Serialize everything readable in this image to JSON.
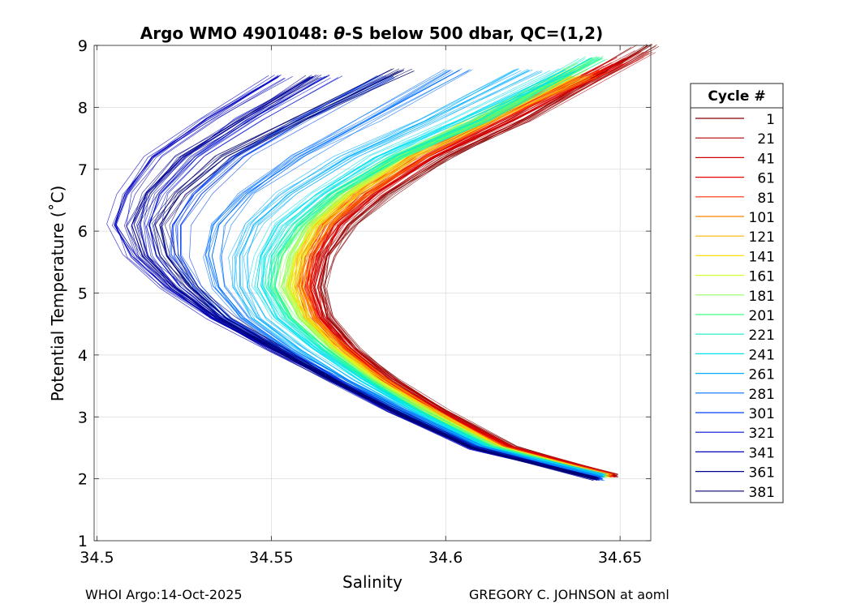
{
  "chart_data": {
    "type": "line",
    "title_prefix": "Argo WMO 4901048: ",
    "title_theta": "θ",
    "title_suffix": "-S below 500 dbar,  QC=(1,2)",
    "xlabel": "Salinity",
    "ylabel": "Potential Temperature (˚C)",
    "xlim": [
      34.4992,
      34.6588
    ],
    "ylim": [
      1,
      9
    ],
    "xticks": [
      34.5,
      34.55,
      34.6,
      34.65
    ],
    "xtick_labels": [
      "34.5",
      "34.55",
      "34.6",
      "34.65"
    ],
    "yticks": [
      1,
      2,
      3,
      4,
      5,
      6,
      7,
      8,
      9
    ],
    "ytick_labels": [
      "1",
      "2",
      "3",
      "4",
      "5",
      "6",
      "7",
      "8",
      "9"
    ],
    "grid": true,
    "legend_title": "Cycle #",
    "legend_placement": "outside-right",
    "series": [
      {
        "name": "1",
        "color": "#800000",
        "salinity": [
          34.649,
          34.62,
          34.6,
          34.585,
          34.574,
          34.566,
          34.564,
          34.566,
          34.572,
          34.583,
          34.6,
          34.622,
          34.658
        ],
        "theta": [
          2.05,
          2.5,
          3.1,
          3.6,
          4.1,
          4.6,
          5.1,
          5.6,
          6.1,
          6.6,
          7.2,
          7.8,
          9.0
        ]
      },
      {
        "name": "21",
        "color": "#b40000",
        "salinity": [
          34.648,
          34.619,
          34.599,
          34.584,
          34.573,
          34.565,
          34.562,
          34.564,
          34.57,
          34.58,
          34.597,
          34.62,
          34.656
        ],
        "theta": [
          2.05,
          2.5,
          3.1,
          3.6,
          4.1,
          4.6,
          5.1,
          5.6,
          6.1,
          6.6,
          7.2,
          7.8,
          8.9
        ]
      },
      {
        "name": "41",
        "color": "#d00000",
        "salinity": [
          34.648,
          34.618,
          34.598,
          34.583,
          34.572,
          34.564,
          34.561,
          34.563,
          34.568,
          34.578,
          34.595,
          34.617,
          34.652
        ],
        "theta": [
          2.05,
          2.5,
          3.1,
          3.6,
          4.1,
          4.6,
          5.1,
          5.6,
          6.1,
          6.6,
          7.2,
          7.8,
          8.8
        ]
      },
      {
        "name": "61",
        "color": "#e80000",
        "salinity": [
          34.648,
          34.618,
          34.597,
          34.582,
          34.571,
          34.563,
          34.56,
          34.562,
          34.567,
          34.577,
          34.594,
          34.616,
          34.648
        ],
        "theta": [
          2.05,
          2.5,
          3.1,
          3.6,
          4.1,
          4.6,
          5.1,
          5.6,
          6.1,
          6.6,
          7.2,
          7.8,
          8.7
        ]
      },
      {
        "name": "81",
        "color": "#ff3000",
        "salinity": [
          34.647,
          34.617,
          34.597,
          34.582,
          34.57,
          34.562,
          34.559,
          34.561,
          34.566,
          34.576,
          34.592,
          34.613,
          34.644
        ],
        "theta": [
          2.05,
          2.5,
          3.1,
          3.6,
          4.1,
          4.6,
          5.1,
          5.6,
          6.1,
          6.6,
          7.2,
          7.8,
          8.6
        ]
      },
      {
        "name": "101",
        "color": "#ff8000",
        "salinity": [
          34.647,
          34.617,
          34.596,
          34.581,
          34.57,
          34.561,
          34.558,
          34.56,
          34.565,
          34.575,
          34.591,
          34.612,
          34.64
        ],
        "theta": [
          2.05,
          2.5,
          3.1,
          3.6,
          4.1,
          4.6,
          5.1,
          5.6,
          6.1,
          6.6,
          7.2,
          7.8,
          8.5
        ]
      },
      {
        "name": "121",
        "color": "#ffb000",
        "salinity": [
          34.647,
          34.616,
          34.596,
          34.581,
          34.569,
          34.561,
          34.557,
          34.559,
          34.564,
          34.574,
          34.59,
          34.611,
          34.638
        ],
        "theta": [
          2.05,
          2.5,
          3.1,
          3.6,
          4.1,
          4.6,
          5.1,
          5.6,
          6.1,
          6.6,
          7.2,
          7.8,
          8.5
        ]
      },
      {
        "name": "141",
        "color": "#ffe000",
        "salinity": [
          34.646,
          34.616,
          34.595,
          34.58,
          34.569,
          34.56,
          34.556,
          34.558,
          34.563,
          34.573,
          34.589,
          34.61,
          34.636
        ],
        "theta": [
          2.05,
          2.5,
          3.1,
          3.6,
          4.1,
          4.6,
          5.1,
          5.6,
          6.1,
          6.6,
          7.2,
          7.8,
          8.5
        ]
      },
      {
        "name": "161",
        "color": "#d0ff30",
        "salinity": [
          34.646,
          34.615,
          34.595,
          34.58,
          34.568,
          34.559,
          34.555,
          34.557,
          34.562,
          34.572,
          34.588,
          34.61,
          34.637
        ],
        "theta": [
          2.05,
          2.5,
          3.1,
          3.6,
          4.1,
          4.6,
          5.1,
          5.6,
          6.1,
          6.6,
          7.2,
          7.8,
          8.6
        ]
      },
      {
        "name": "181",
        "color": "#90ff60",
        "salinity": [
          34.646,
          34.615,
          34.594,
          34.579,
          34.567,
          34.558,
          34.553,
          34.555,
          34.56,
          34.57,
          34.587,
          34.61,
          34.64
        ],
        "theta": [
          2.05,
          2.5,
          3.1,
          3.6,
          4.1,
          4.6,
          5.1,
          5.6,
          6.1,
          6.6,
          7.2,
          7.8,
          8.7
        ]
      },
      {
        "name": "201",
        "color": "#40ff80",
        "salinity": [
          34.645,
          34.614,
          34.593,
          34.578,
          34.566,
          34.556,
          34.551,
          34.553,
          34.559,
          34.569,
          34.587,
          34.612,
          34.645
        ],
        "theta": [
          2.05,
          2.5,
          3.1,
          3.6,
          4.1,
          4.6,
          5.1,
          5.6,
          6.1,
          6.6,
          7.2,
          7.8,
          8.8
        ]
      },
      {
        "name": "221",
        "color": "#10f0c0",
        "salinity": [
          34.645,
          34.613,
          34.592,
          34.577,
          34.564,
          34.554,
          34.549,
          34.55,
          34.556,
          34.567,
          34.585,
          34.61,
          34.642
        ],
        "theta": [
          2.05,
          2.5,
          3.1,
          3.6,
          4.1,
          4.6,
          5.1,
          5.6,
          6.1,
          6.6,
          7.2,
          7.8,
          8.8
        ]
      },
      {
        "name": "241",
        "color": "#00e0f0",
        "salinity": [
          34.645,
          34.612,
          34.591,
          34.575,
          34.562,
          34.551,
          34.546,
          34.547,
          34.552,
          34.563,
          34.58,
          34.604,
          34.634
        ],
        "theta": [
          2.05,
          2.5,
          3.1,
          3.6,
          4.1,
          4.6,
          5.1,
          5.6,
          6.1,
          6.6,
          7.2,
          7.8,
          8.6
        ]
      },
      {
        "name": "261",
        "color": "#00b0ff",
        "salinity": [
          34.645,
          34.611,
          34.589,
          34.572,
          34.558,
          34.546,
          34.541,
          34.541,
          34.545,
          34.555,
          34.572,
          34.595,
          34.624
        ],
        "theta": [
          2.05,
          2.5,
          3.1,
          3.6,
          4.1,
          4.6,
          5.1,
          5.6,
          6.1,
          6.6,
          7.2,
          7.8,
          8.6
        ]
      },
      {
        "name": "281",
        "color": "#0070ff",
        "salinity": [
          34.645,
          34.61,
          34.587,
          34.57,
          34.555,
          34.542,
          34.535,
          34.533,
          34.535,
          34.543,
          34.558,
          34.578,
          34.604
        ],
        "theta": [
          2.0,
          2.5,
          3.1,
          3.6,
          4.1,
          4.6,
          5.1,
          5.6,
          6.1,
          6.6,
          7.2,
          7.8,
          8.6
        ]
      },
      {
        "name": "301",
        "color": "#0040f0",
        "salinity": [
          34.644,
          34.609,
          34.586,
          34.569,
          34.553,
          34.538,
          34.529,
          34.524,
          34.524,
          34.53,
          34.542,
          34.56,
          34.585
        ],
        "theta": [
          2.0,
          2.5,
          3.1,
          3.6,
          4.1,
          4.6,
          5.1,
          5.6,
          6.1,
          6.6,
          7.2,
          7.8,
          8.5
        ]
      },
      {
        "name": "321",
        "color": "#0010d0",
        "salinity": [
          34.644,
          34.608,
          34.585,
          34.568,
          34.551,
          34.535,
          34.524,
          34.517,
          34.515,
          34.518,
          34.528,
          34.544,
          34.566
        ],
        "theta": [
          2.0,
          2.5,
          3.1,
          3.6,
          4.1,
          4.6,
          5.1,
          5.6,
          6.1,
          6.6,
          7.2,
          7.8,
          8.5
        ]
      },
      {
        "name": "341",
        "color": "#0000c0",
        "salinity": [
          34.643,
          34.607,
          34.584,
          34.567,
          34.55,
          34.533,
          34.52,
          34.51,
          34.505,
          34.508,
          34.516,
          34.531,
          34.552
        ],
        "theta": [
          2.0,
          2.5,
          3.1,
          3.6,
          4.1,
          4.6,
          5.1,
          5.6,
          6.1,
          6.6,
          7.2,
          7.8,
          8.5
        ]
      },
      {
        "name": "361",
        "color": "#000090",
        "salinity": [
          34.643,
          34.607,
          34.584,
          34.567,
          34.55,
          34.534,
          34.522,
          34.513,
          34.51,
          34.514,
          34.524,
          34.541,
          34.562
        ],
        "theta": [
          2.0,
          2.5,
          3.1,
          3.6,
          4.1,
          4.6,
          5.1,
          5.6,
          6.1,
          6.6,
          7.2,
          7.8,
          8.5
        ]
      },
      {
        "name": "381",
        "color": "#000070",
        "salinity": [
          34.643,
          34.608,
          34.585,
          34.568,
          34.552,
          34.537,
          34.527,
          34.52,
          34.518,
          34.524,
          34.537,
          34.558,
          34.588
        ],
        "theta": [
          2.0,
          2.5,
          3.1,
          3.6,
          4.1,
          4.6,
          5.1,
          5.6,
          6.1,
          6.6,
          7.2,
          7.8,
          8.6
        ]
      }
    ]
  },
  "footer": {
    "left": "WHOI Argo:14-Oct-2025",
    "right": "GREGORY C. JOHNSON at aoml"
  }
}
